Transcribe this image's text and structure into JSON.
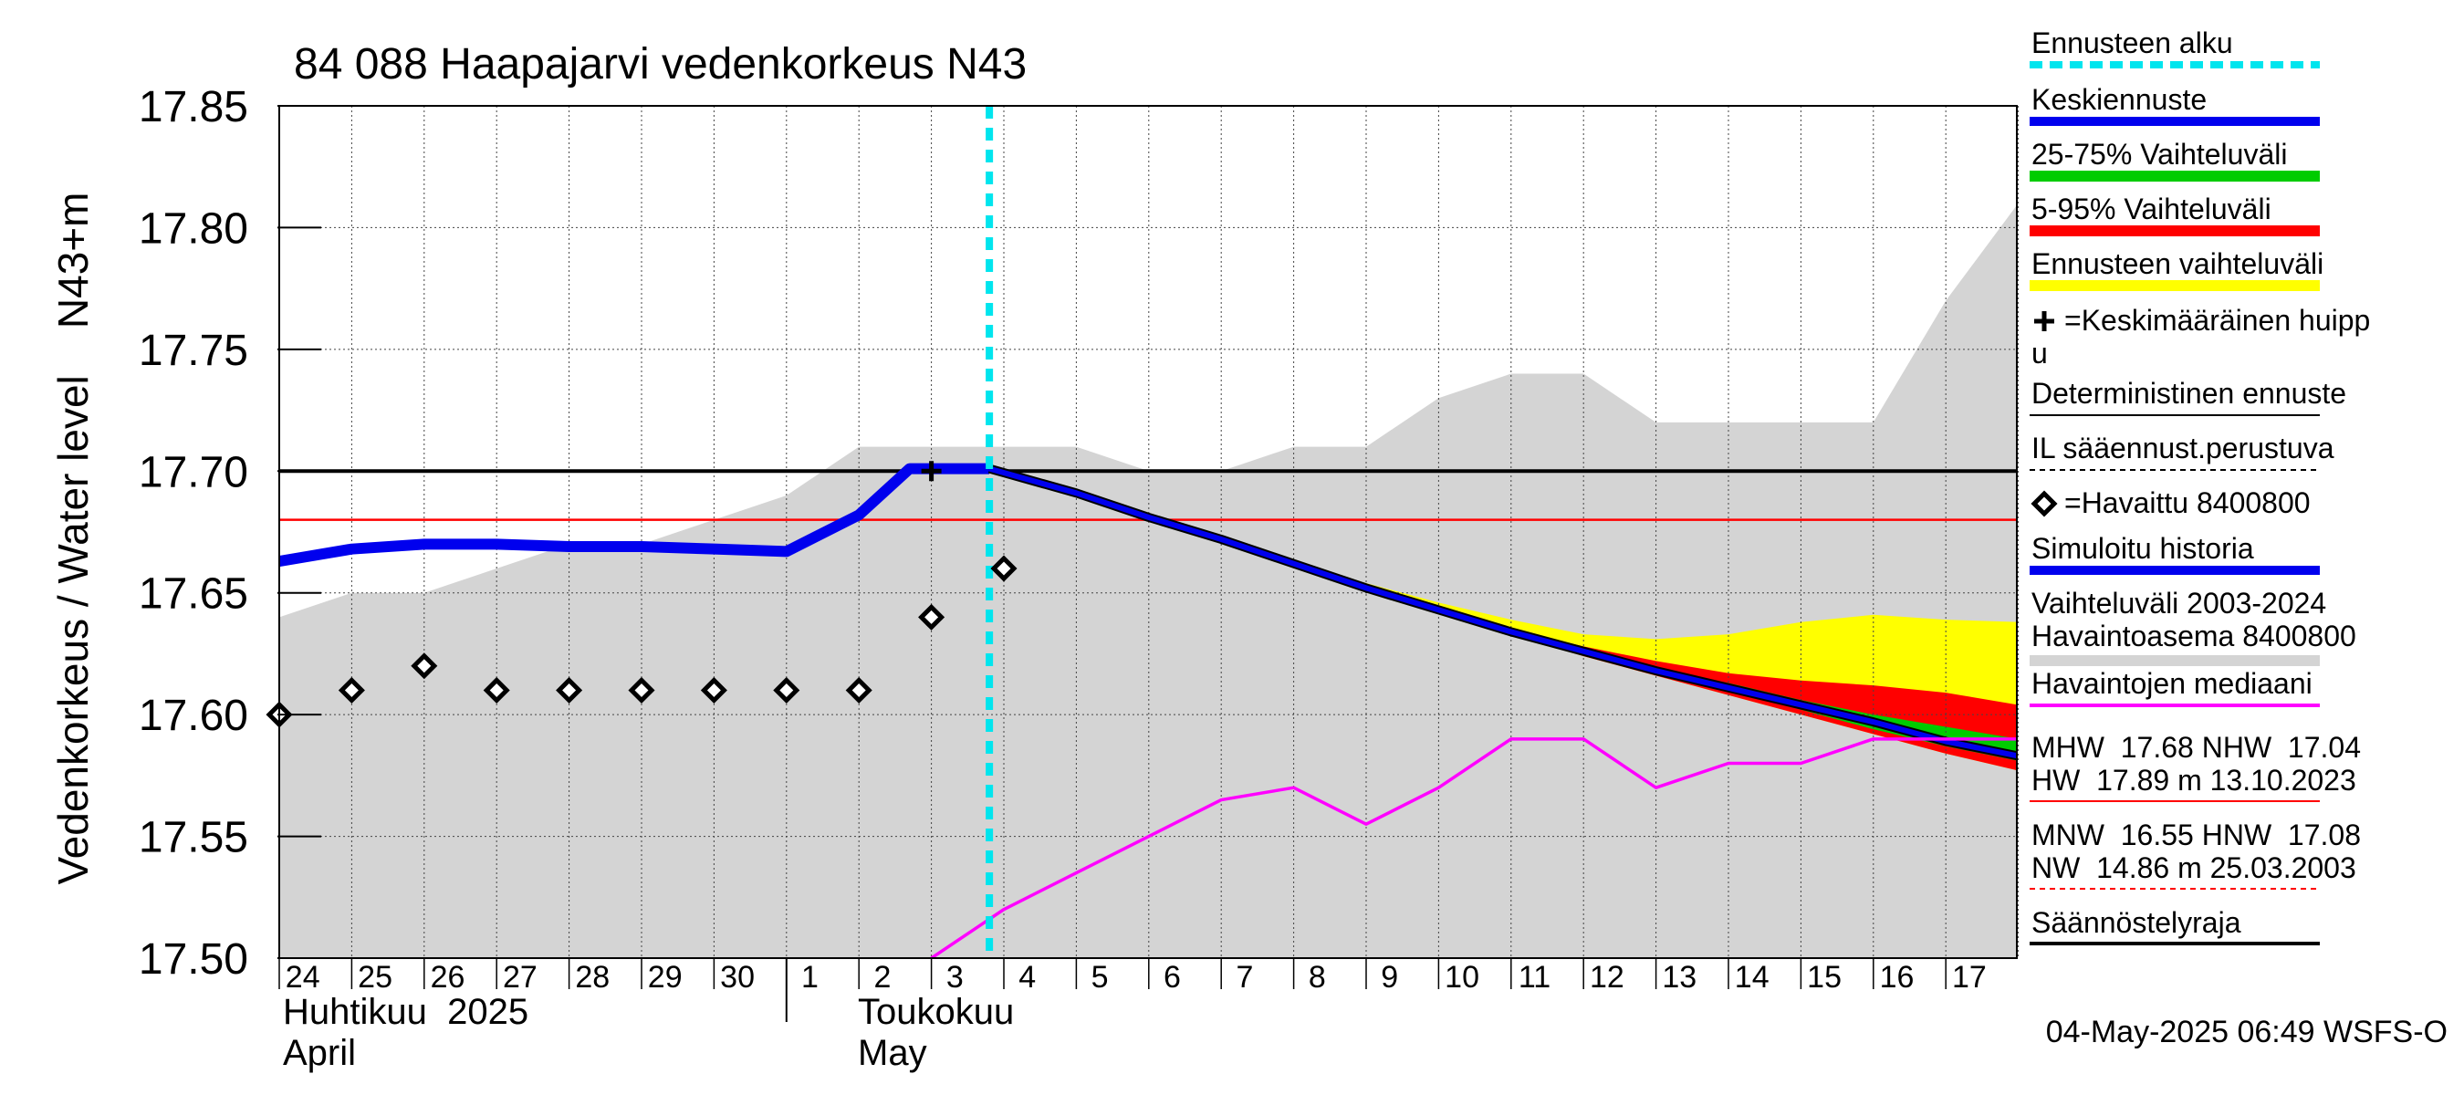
{
  "chart_data": {
    "type": "line",
    "title": "84 088 Haapajarvi vedenkorkeus N43",
    "ylabel": "Vedenkorkeus / Water level    N43+m",
    "ylim": [
      17.5,
      17.85
    ],
    "y_ticks": [
      "17.50",
      "17.55",
      "17.60",
      "17.65",
      "17.70",
      "17.75",
      "17.80",
      "17.85"
    ],
    "x_range_days": [
      -10,
      14
    ],
    "x_day_labels": [
      {
        "d": -10,
        "label": "24"
      },
      {
        "d": -9,
        "label": "25"
      },
      {
        "d": -8,
        "label": "26"
      },
      {
        "d": -7,
        "label": "27"
      },
      {
        "d": -6,
        "label": "28"
      },
      {
        "d": -5,
        "label": "29"
      },
      {
        "d": -4,
        "label": "30"
      },
      {
        "d": -3,
        "label": "1"
      },
      {
        "d": -2,
        "label": "2"
      },
      {
        "d": -1,
        "label": "3"
      },
      {
        "d": 0,
        "label": "4"
      },
      {
        "d": 1,
        "label": "5"
      },
      {
        "d": 2,
        "label": "6"
      },
      {
        "d": 3,
        "label": "7"
      },
      {
        "d": 4,
        "label": "8"
      },
      {
        "d": 5,
        "label": "9"
      },
      {
        "d": 6,
        "label": "10"
      },
      {
        "d": 7,
        "label": "11"
      },
      {
        "d": 8,
        "label": "12"
      },
      {
        "d": 9,
        "label": "13"
      },
      {
        "d": 10,
        "label": "14"
      },
      {
        "d": 11,
        "label": "15"
      },
      {
        "d": 12,
        "label": "16"
      },
      {
        "d": 13,
        "label": "17"
      }
    ],
    "month_labels": {
      "april_fi": "Huhtikuu  2025",
      "april_en": "April",
      "may_fi": "Toukokuu",
      "may_en": "May"
    },
    "forecast_start_day": -0.2,
    "history_range": {
      "x": [
        -10,
        -9,
        -8,
        -7,
        -6,
        -5,
        -4,
        -3,
        -2,
        -1,
        0,
        1,
        2,
        3,
        4,
        5,
        6,
        7,
        8,
        9,
        10,
        11,
        12,
        13,
        14
      ],
      "upper": [
        17.64,
        17.65,
        17.65,
        17.66,
        17.67,
        17.67,
        17.68,
        17.69,
        17.71,
        17.71,
        17.71,
        17.71,
        17.7,
        17.7,
        17.71,
        17.71,
        17.73,
        17.74,
        17.74,
        17.72,
        17.72,
        17.72,
        17.72,
        17.77,
        17.81
      ]
    },
    "series": [
      {
        "name": "Simuloitu historia",
        "color": "#0000ee",
        "x": [
          -10,
          -9,
          -8,
          -7,
          -6,
          -5,
          -4,
          -3,
          -2,
          -1.3,
          -0.2
        ],
        "values": [
          17.663,
          17.668,
          17.67,
          17.67,
          17.669,
          17.669,
          17.668,
          17.667,
          17.682,
          17.701,
          17.701
        ]
      },
      {
        "name": "Keskiennuste",
        "color": "#0000ee",
        "x": [
          -0.2,
          1,
          2,
          3,
          4,
          5,
          6,
          7,
          8,
          9,
          10,
          11,
          12,
          13,
          14
        ],
        "values": [
          17.701,
          17.691,
          17.681,
          17.672,
          17.662,
          17.652,
          17.643,
          17.634,
          17.626,
          17.618,
          17.611,
          17.604,
          17.597,
          17.589,
          17.583
        ]
      },
      {
        "name": "Havaintojen mediaani",
        "color": "#ff00ff",
        "x": [
          -1,
          0,
          1,
          2,
          3,
          4,
          5,
          6,
          7,
          8,
          9,
          10,
          11,
          12,
          13,
          14
        ],
        "values": [
          17.5,
          17.52,
          17.535,
          17.55,
          17.565,
          17.57,
          17.555,
          17.57,
          17.59,
          17.59,
          17.57,
          17.58,
          17.58,
          17.59,
          17.59,
          17.59
        ]
      }
    ],
    "bands": {
      "x": [
        4,
        5,
        6,
        7,
        8,
        9,
        10,
        11,
        12,
        13,
        14
      ],
      "center": [
        17.662,
        17.652,
        17.643,
        17.634,
        17.626,
        17.618,
        17.611,
        17.604,
        17.597,
        17.589,
        17.583
      ],
      "yellow_upper": [
        17.662,
        17.654,
        17.646,
        17.639,
        17.633,
        17.631,
        17.633,
        17.638,
        17.641,
        17.639,
        17.638
      ],
      "red_upper": [
        17.662,
        17.652,
        17.644,
        17.635,
        17.628,
        17.622,
        17.617,
        17.614,
        17.612,
        17.609,
        17.604
      ],
      "green_upper": [
        17.662,
        17.652,
        17.643,
        17.635,
        17.627,
        17.619,
        17.613,
        17.606,
        17.6,
        17.595,
        17.59
      ],
      "green_lower": [
        17.662,
        17.652,
        17.643,
        17.634,
        17.626,
        17.618,
        17.61,
        17.602,
        17.594,
        17.587,
        17.581
      ],
      "red_lower": [
        17.662,
        17.652,
        17.642,
        17.633,
        17.624,
        17.616,
        17.608,
        17.6,
        17.592,
        17.584,
        17.577
      ]
    },
    "colors": {
      "yellow": "#ffff00",
      "red": "#ff0000",
      "green": "#00cc00",
      "gray": "#d4d4d4",
      "cyan": "#00e5ee",
      "blue": "#0000ee",
      "magenta": "#ff00ff"
    },
    "observations": {
      "x": [
        -10,
        -9,
        -8,
        -7,
        -6,
        -5,
        -4,
        -3,
        -2,
        -1,
        0
      ],
      "values": [
        17.6,
        17.61,
        17.62,
        17.61,
        17.61,
        17.61,
        17.61,
        17.61,
        17.61,
        17.64,
        17.66
      ]
    },
    "mean_peak": {
      "x": -1,
      "value": 17.7
    },
    "hlines": [
      {
        "name": "Säännöstelyraja",
        "value": 17.7,
        "color": "#000000"
      },
      {
        "name": "MHW",
        "value": 17.68,
        "color": "#ff0000"
      }
    ],
    "legend": [
      {
        "label": "Ennusteen alku",
        "style": "cyan-dash"
      },
      {
        "label": "Keskiennuste",
        "style": "blue"
      },
      {
        "label": "25-75% Vaihteluväli",
        "style": "green"
      },
      {
        "label": "5-95% Vaihteluväli",
        "style": "red"
      },
      {
        "label": "Ennusteen vaihteluväli",
        "style": "yellow"
      },
      {
        "label": "=Keskimääräinen huipp",
        "label2": "u",
        "style": "plus"
      },
      {
        "label": "Deterministinen ennuste",
        "style": "black-thin"
      },
      {
        "label": "IL sääennust.perustuva",
        "style": "black-dash"
      },
      {
        "label": "=Havaittu 8400800",
        "style": "diamond"
      },
      {
        "label": "Simuloitu historia",
        "style": "blue"
      },
      {
        "label": "Vaihteluväli 2003-2024",
        "label2": " Havaintoasema 8400800",
        "style": "gray"
      },
      {
        "label": "Havaintojen mediaani",
        "style": "magenta"
      }
    ],
    "stats": {
      "line1": "MHW  17.68 NHW  17.04",
      "line2": "HW  17.89 m 13.10.2023",
      "line3": "MNW  16.55 HNW  17.08",
      "line4": "NW  14.86 m 25.03.2003"
    },
    "last_legend": "Säännöstelyraja",
    "timestamp": "04-May-2025 06:49 WSFS-O"
  }
}
